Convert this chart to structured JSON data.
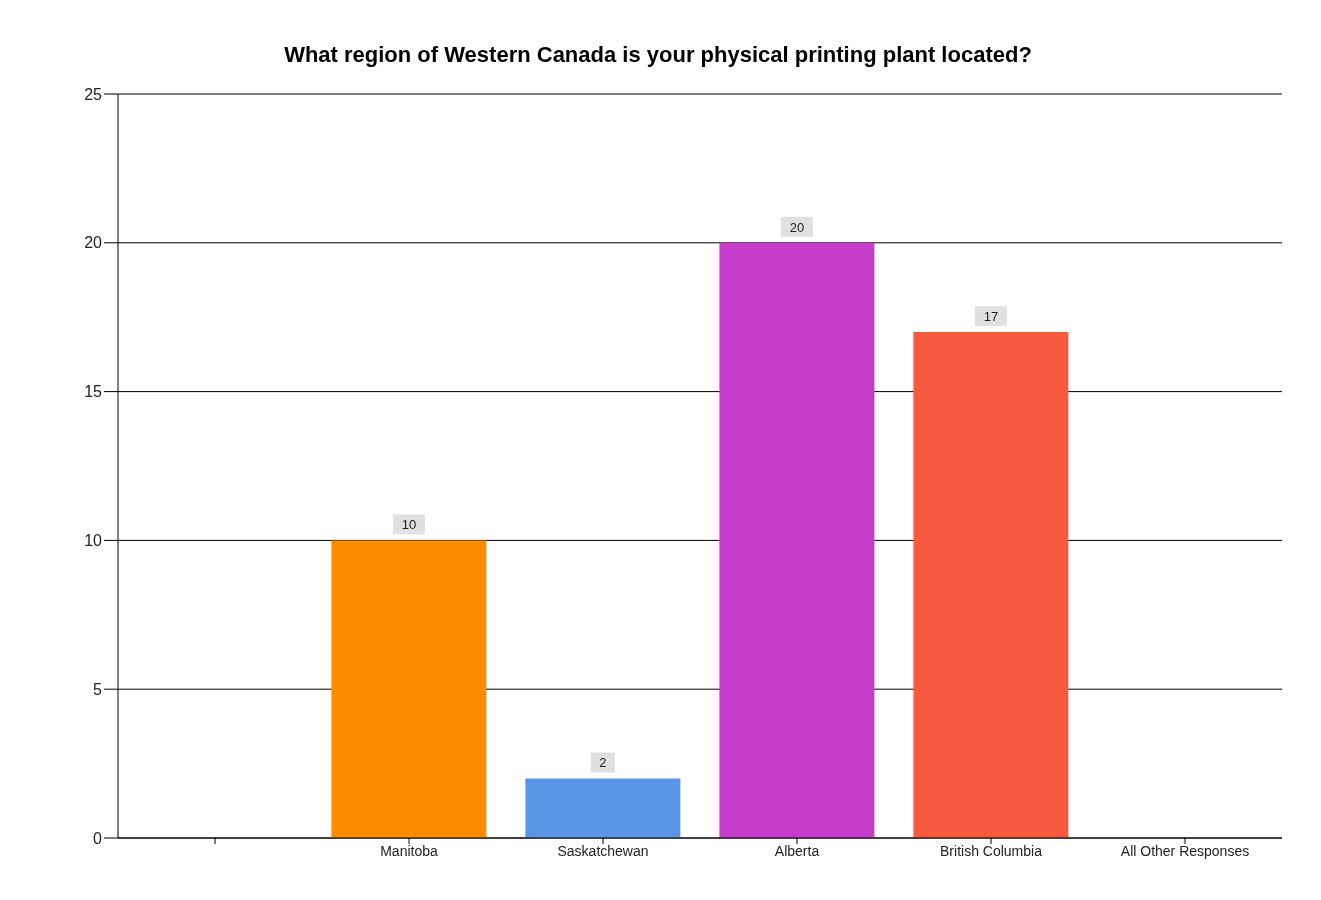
{
  "chart_data": {
    "type": "bar",
    "title": "What region of Western Canada is your physical printing plant located?",
    "categories": [
      null,
      "Manitoba",
      "Saskatchewan",
      "Alberta",
      "British Columbia",
      "All Other Responses"
    ],
    "values": [
      null,
      10,
      2,
      20,
      17,
      0
    ],
    "colors": [
      "#fb8c00",
      "#fb8c00",
      "#5a95e6",
      "#c63cca",
      "#f75a3f",
      "#999999"
    ],
    "value_labels": [
      null,
      "10",
      "2",
      "20",
      "17",
      null
    ],
    "ylim": [
      0,
      25
    ],
    "yticks": [
      0,
      5,
      10,
      15,
      20,
      25
    ],
    "grid": "y"
  }
}
